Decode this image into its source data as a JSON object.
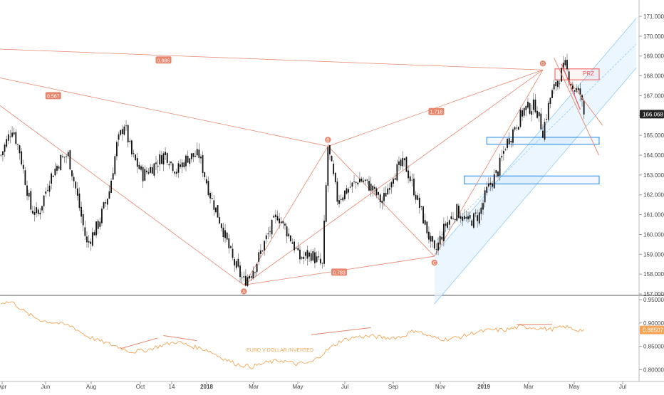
{
  "chart_data": {
    "type": "candlestick",
    "price_axis": {
      "min": 157.0,
      "max": 171.0,
      "ticks": [
        "157.000",
        "158.000",
        "159.000",
        "160.000",
        "161.000",
        "162.000",
        "163.000",
        "164.000",
        "165.000",
        "166.000",
        "167.000",
        "168.000",
        "169.000",
        "170.000",
        "171.000"
      ],
      "last_price_label": "166.068",
      "last_price": 166.068
    },
    "indicator_axis": {
      "min": 0.79,
      "max": 0.95,
      "ticks": [
        "0.80000",
        "0.85000",
        "0.90000",
        "0.95000"
      ],
      "last_value_label": "0.88507",
      "last_value": 0.88507
    },
    "time_axis": {
      "labels": [
        "Apr",
        "Jun",
        "Aug",
        "Oct",
        "14",
        "2018",
        "Mar",
        "May",
        "Jul",
        "Sep",
        "Nov",
        "2019",
        "Mar",
        "May",
        "Jul"
      ],
      "bold": [
        "2018",
        "2019"
      ]
    },
    "pattern_points": [
      {
        "label": "A",
        "index": 130,
        "value": 157.45,
        "pos": "below"
      },
      {
        "label": "B",
        "index": 175,
        "value": 164.45,
        "pos": "above"
      },
      {
        "label": "C",
        "index": 232,
        "value": 158.9,
        "pos": "below"
      },
      {
        "label": "D",
        "index": 290,
        "value": 168.3,
        "pos": "above"
      }
    ],
    "ratios": [
      {
        "label": "0.886",
        "index": 87,
        "value": 168.8
      },
      {
        "label": "0.567",
        "index": 28,
        "value": 167.0
      },
      {
        "label": "1.718",
        "index": 233,
        "value": 166.2
      },
      {
        "label": "0.783",
        "index": 181,
        "value": 158.1
      }
    ],
    "zones": [
      {
        "name": "PRZ",
        "label": "PRZ",
        "start_index": 295,
        "end_index": 330,
        "top": 168.35,
        "bottom": 167.8,
        "color": "#ef5350"
      },
      {
        "name": "support-1",
        "label": "",
        "start_index": 260,
        "end_index": 330,
        "top": 164.9,
        "bottom": 164.55,
        "color": "#1e88e5"
      },
      {
        "name": "support-2",
        "label": "",
        "start_index": 248,
        "end_index": 330,
        "top": 162.95,
        "bottom": 162.55,
        "color": "#1e88e5"
      }
    ],
    "indicator_label": "EURO V DOLLAR INVERTED",
    "colors": {
      "candle": "#000000",
      "wick": "#000000",
      "pattern": "#e5866d",
      "channel": "#90caf9",
      "indicator": "#f5a454",
      "last_price_bg": "#222222",
      "indicator_last_bg": "#f5a454",
      "divergence": "#e5866d"
    }
  }
}
